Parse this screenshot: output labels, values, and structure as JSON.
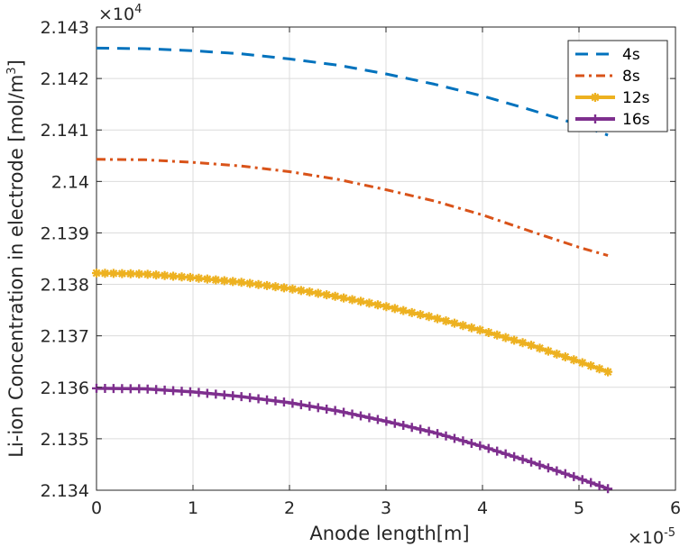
{
  "chart_data": {
    "type": "line",
    "xlabel": "Anode length[m]",
    "ylabel_main": "Li-ion Concentration in electrode [mol/m",
    "ylabel_sup": "3",
    "ylabel_close": "]",
    "x_exponent": {
      "base": "×10",
      "power": "-5"
    },
    "y_exponent": {
      "base": "×10",
      "power": "4"
    },
    "xlim": [
      0,
      6
    ],
    "ylim": [
      2.134,
      2.143
    ],
    "x_ticks": [
      "0",
      "1",
      "2",
      "3",
      "4",
      "5",
      "6"
    ],
    "y_ticks": [
      "2.134",
      "2.135",
      "2.136",
      "2.137",
      "2.138",
      "2.139",
      "2.14",
      "2.141",
      "2.142",
      "2.143"
    ],
    "grid": true,
    "legend_position": "top-right",
    "series": [
      {
        "name": "4s",
        "color": "#0072BD",
        "style": "dashed",
        "marker": "none",
        "x": [
          0,
          0.5,
          1.0,
          1.5,
          2.0,
          2.5,
          3.0,
          3.5,
          4.0,
          4.5,
          5.0,
          5.3
        ],
        "y": [
          2.14259,
          2.14258,
          2.14254,
          2.14248,
          2.14238,
          2.14226,
          2.14209,
          2.14189,
          2.14166,
          2.14139,
          2.1411,
          2.1409
        ]
      },
      {
        "name": "8s",
        "color": "#D95319",
        "style": "dashdot",
        "marker": "none",
        "x": [
          0,
          0.5,
          1.0,
          1.5,
          2.0,
          2.5,
          3.0,
          3.5,
          4.0,
          4.5,
          5.0,
          5.3
        ],
        "y": [
          2.14043,
          2.14042,
          2.14037,
          2.1403,
          2.14019,
          2.14004,
          2.13984,
          2.13962,
          2.13935,
          2.13903,
          2.13872,
          2.13856
        ]
      },
      {
        "name": "12s",
        "color": "#EDB120",
        "style": "solid",
        "marker": "star",
        "x": [
          0,
          0.5,
          1.0,
          1.5,
          2.0,
          2.5,
          3.0,
          3.5,
          4.0,
          4.5,
          5.0,
          5.3
        ],
        "y": [
          2.13822,
          2.1382,
          2.13813,
          2.13804,
          2.13792,
          2.13776,
          2.13757,
          2.13735,
          2.1371,
          2.13682,
          2.1365,
          2.1363
        ]
      },
      {
        "name": "16s",
        "color": "#7E2F8E",
        "style": "solid",
        "marker": "plus",
        "x": [
          0,
          0.5,
          1.0,
          1.5,
          2.0,
          2.5,
          3.0,
          3.5,
          4.0,
          4.5,
          5.0,
          5.3
        ],
        "y": [
          2.13598,
          2.13597,
          2.13591,
          2.13582,
          2.1357,
          2.13554,
          2.13534,
          2.13512,
          2.13485,
          2.13455,
          2.13423,
          2.13403
        ]
      }
    ]
  }
}
